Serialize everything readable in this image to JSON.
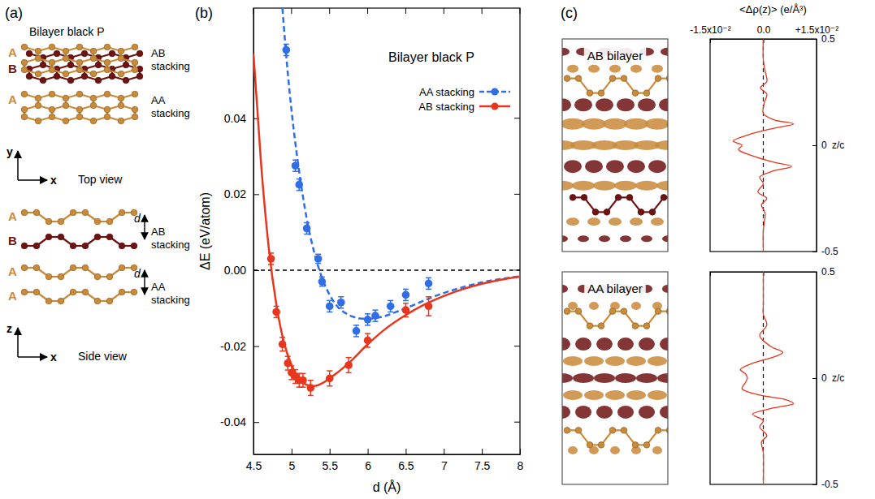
{
  "panel_labels": [
    "(a)",
    "(b)",
    "(c)"
  ],
  "structure": {
    "title": "Bilayer black P",
    "top_view": {
      "caption": "Top view",
      "axes": [
        "y",
        "x"
      ],
      "rows": [
        {
          "layers": [
            "A",
            "B"
          ],
          "label": "AB stacking"
        },
        {
          "layers": [
            "A"
          ],
          "label": "AA stacking"
        }
      ]
    },
    "side_view": {
      "caption": "Side view",
      "axes": [
        "z",
        "x"
      ],
      "spacing_label": "d",
      "rows": [
        {
          "layers": [
            "A",
            "B"
          ],
          "label": "AB stacking"
        },
        {
          "layers": [
            "A",
            "A"
          ],
          "label": "AA stacking"
        }
      ]
    }
  },
  "density": {
    "titles": [
      "AB bilayer",
      "AA bilayer"
    ]
  },
  "chart_data": [
    {
      "type": "line",
      "title": "Bilayer black P",
      "x_label": "d (Å)",
      "y_label": "ΔE (eV/atom)",
      "xlim": [
        4.5,
        8
      ],
      "xticks": [
        4.5,
        5,
        5.5,
        6,
        6.5,
        7,
        7.5,
        8
      ],
      "ylim": [
        -0.0485,
        0.069
      ],
      "yticks": [
        -0.04,
        -0.02,
        {
          "value": 0,
          "label": "0.00"
        },
        0.02,
        0.04
      ],
      "y_reference": 0,
      "legend": "upper right",
      "series": [
        {
          "name": "AA stacking",
          "color": "#2f6ee6",
          "marker": "circle",
          "line_style": "dashed",
          "x": [
            4.93,
            5.05,
            5.1,
            5.2,
            5.35,
            5.4,
            5.5,
            5.65,
            5.85,
            6.0,
            6.1,
            6.3,
            6.5,
            6.8
          ],
          "values": [
            0.058,
            0.0275,
            0.0225,
            0.011,
            0.003,
            -0.003,
            -0.0095,
            -0.0085,
            -0.016,
            -0.013,
            -0.012,
            -0.0095,
            -0.0065,
            -0.0035
          ],
          "errors": [
            0.0015,
            0.0015,
            0.0015,
            0.0015,
            0.0012,
            0.0012,
            0.0015,
            0.0015,
            0.0015,
            0.0015,
            0.0015,
            0.0015,
            0.0015,
            0.0015
          ],
          "fit": {
            "x": [
              4.88,
              4.95,
              5.0,
              5.1,
              5.2,
              5.3,
              5.4,
              5.5,
              5.6,
              5.7,
              5.8,
              5.9,
              6.0,
              6.2,
              6.4,
              6.6,
              6.8,
              7.0,
              7.25,
              7.5,
              7.75,
              8.0
            ],
            "values": [
              0.069,
              0.052,
              0.042,
              0.026,
              0.0135,
              0.0045,
              -0.002,
              -0.0065,
              -0.0095,
              -0.0112,
              -0.0122,
              -0.0127,
              -0.0128,
              -0.0122,
              -0.0108,
              -0.0092,
              -0.0075,
              -0.006,
              -0.0045,
              -0.0032,
              -0.0023,
              -0.0016
            ]
          }
        },
        {
          "name": "AB stacking",
          "color": "#e8351e",
          "marker": "circle",
          "line_style": "solid",
          "x": [
            4.73,
            4.8,
            4.88,
            4.95,
            5.0,
            5.05,
            5.1,
            5.15,
            5.25,
            5.5,
            5.75,
            6.0,
            6.5,
            6.8
          ],
          "values": [
            0.003,
            -0.011,
            -0.0195,
            -0.0245,
            -0.027,
            -0.028,
            -0.029,
            -0.029,
            -0.031,
            -0.0285,
            -0.025,
            -0.0185,
            -0.0105,
            -0.0095
          ],
          "errors": [
            0.0015,
            0.0015,
            0.0018,
            0.0018,
            0.0018,
            0.0018,
            0.0018,
            0.0018,
            0.002,
            0.002,
            0.002,
            0.0018,
            0.0018,
            0.0025
          ],
          "fit": {
            "x": [
              4.5,
              4.6,
              4.7,
              4.8,
              4.9,
              5.0,
              5.1,
              5.2,
              5.3,
              5.4,
              5.5,
              5.75,
              6.0,
              6.25,
              6.5,
              6.75,
              7.0,
              7.25,
              7.5,
              7.75,
              8.0
            ],
            "values": [
              0.057,
              0.028,
              0.006,
              -0.009,
              -0.019,
              -0.025,
              -0.0285,
              -0.0302,
              -0.0305,
              -0.0298,
              -0.0285,
              -0.0245,
              -0.0195,
              -0.0152,
              -0.0118,
              -0.009,
              -0.0068,
              -0.005,
              -0.0036,
              -0.0025,
              -0.0017
            ]
          }
        }
      ]
    },
    {
      "type": "line",
      "orientation": "horizontal",
      "x_label": "z/c",
      "y_label": "<Δρ(z)> (e/Å³)",
      "xlim": [
        -0.5,
        0.5
      ],
      "xticks": [
        -0.5,
        0,
        0.5
      ],
      "ylim": [
        -0.015,
        0.015
      ],
      "yticks": [
        {
          "value": -0.015,
          "label": "-1.5x10⁻²"
        },
        {
          "value": 0,
          "label": "0.0"
        },
        {
          "value": 0.015,
          "label": "+1.5x10⁻²"
        }
      ],
      "y_reference": 0,
      "series": [
        {
          "color": "#e8351e",
          "line_style": "solid",
          "x": [
            0.5,
            0.4,
            0.35,
            0.3,
            0.27,
            0.24,
            0.2,
            0.15,
            0.12,
            0.1,
            0.08,
            0.05,
            0.02,
            0,
            -0.02,
            -0.05,
            -0.08,
            -0.1,
            -0.12,
            -0.15,
            -0.18,
            -0.22,
            -0.25,
            -0.28,
            -0.32,
            -0.4,
            -0.5
          ],
          "values": [
            0,
            0,
            0.0005,
            0.001,
            -0.0008,
            0.001,
            0.0003,
            0,
            0.003,
            0.0085,
            0.003,
            -0.004,
            -0.0085,
            -0.006,
            -0.007,
            -0.003,
            0.003,
            0.008,
            0.003,
            -0.001,
            0,
            -0.0015,
            0.001,
            -0.0005,
            0.0005,
            0,
            0
          ]
        }
      ]
    },
    {
      "type": "line",
      "orientation": "horizontal",
      "x_label": "z/c",
      "tick_labels": "x",
      "xlim": [
        -0.5,
        0.5
      ],
      "xticks": [
        -0.5,
        0,
        0.5
      ],
      "ylim": [
        -0.015,
        0.015
      ],
      "yticks": [
        -0.015,
        0,
        0.015
      ],
      "y_reference": 0,
      "series": [
        {
          "color": "#e8351e",
          "line_style": "solid",
          "x": [
            0.5,
            0.35,
            0.3,
            0.25,
            0.2,
            0.15,
            0.12,
            0.1,
            0.07,
            0.04,
            0.02,
            0,
            -0.02,
            -0.05,
            -0.08,
            -0.1,
            -0.12,
            -0.14,
            -0.17,
            -0.2,
            -0.23,
            -0.27,
            -0.3,
            -0.35,
            -0.5
          ],
          "values": [
            0,
            0,
            0,
            0.001,
            -0.001,
            0.002,
            0.0055,
            0.003,
            -0.003,
            -0.0065,
            -0.005,
            -0.0045,
            -0.005,
            -0.006,
            -0.001,
            0.006,
            0.0085,
            0.003,
            -0.003,
            0,
            -0.001,
            0.001,
            -0.0005,
            0,
            0
          ]
        }
      ]
    }
  ]
}
